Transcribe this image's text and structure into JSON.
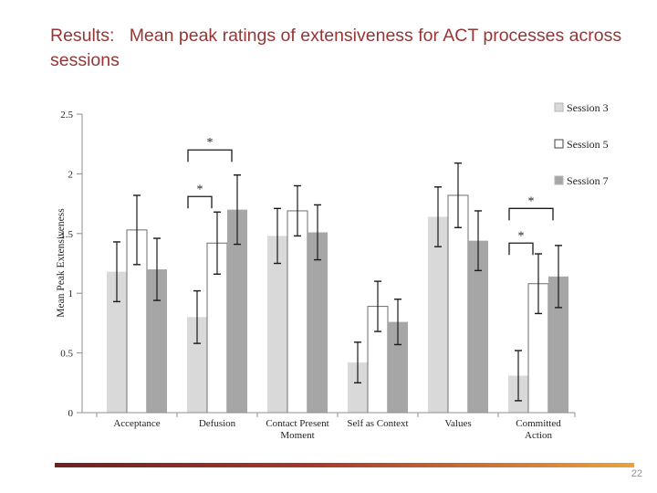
{
  "slide": {
    "title": "Results:   Mean peak ratings of extensiveness for ACT processes across sessions",
    "title_color": "#963634",
    "page_number": "22",
    "accent_gradient": [
      "#6d2121",
      "#a73a2a",
      "#e9a43c"
    ]
  },
  "chart_data": {
    "type": "bar",
    "title": "",
    "xlabel": "",
    "ylabel": "Mean Peak Extensiveness",
    "ylim": [
      0,
      2.5
    ],
    "ytick_labels": [
      "0",
      "0.5",
      "1",
      "1.5",
      "2",
      "2.5"
    ],
    "ytick_values": [
      0,
      0.5,
      1,
      1.5,
      2,
      2.5
    ],
    "grid": false,
    "legend_position": "right",
    "categories": [
      "Acceptance",
      "Defusion",
      "Contact Present Moment",
      "Self as Context",
      "Values",
      "Committed Action"
    ],
    "series": [
      {
        "name": "Session 3",
        "fill": "#d9d9d9",
        "border": "none",
        "values": [
          1.18,
          0.8,
          1.48,
          0.42,
          1.64,
          0.31
        ],
        "errors": [
          0.25,
          0.22,
          0.23,
          0.17,
          0.25,
          0.21
        ]
      },
      {
        "name": "Session 5",
        "fill": "#ffffff",
        "border": "#6e6e6e",
        "values": [
          1.53,
          1.42,
          1.69,
          0.89,
          1.82,
          1.08
        ],
        "errors": [
          0.29,
          0.26,
          0.21,
          0.21,
          0.27,
          0.25
        ]
      },
      {
        "name": "Session 7",
        "fill": "#a6a6a6",
        "border": "none",
        "values": [
          1.2,
          1.7,
          1.51,
          0.76,
          1.44,
          1.14
        ],
        "errors": [
          0.26,
          0.29,
          0.23,
          0.19,
          0.25,
          0.26
        ]
      }
    ],
    "significance_brackets": [
      {
        "category": "Defusion",
        "from": "Session 3",
        "to": "Session 7",
        "y": 2.2,
        "label": "*"
      },
      {
        "category": "Defusion",
        "from": "Session 3",
        "to": "Session 5",
        "y": 1.81,
        "label": "*"
      },
      {
        "category": "Committed Action",
        "from": "Session 3",
        "to": "Session 7",
        "y": 1.71,
        "label": "*"
      },
      {
        "category": "Committed Action",
        "from": "Session 3",
        "to": "Session 5",
        "y": 1.42,
        "label": "*"
      }
    ]
  }
}
